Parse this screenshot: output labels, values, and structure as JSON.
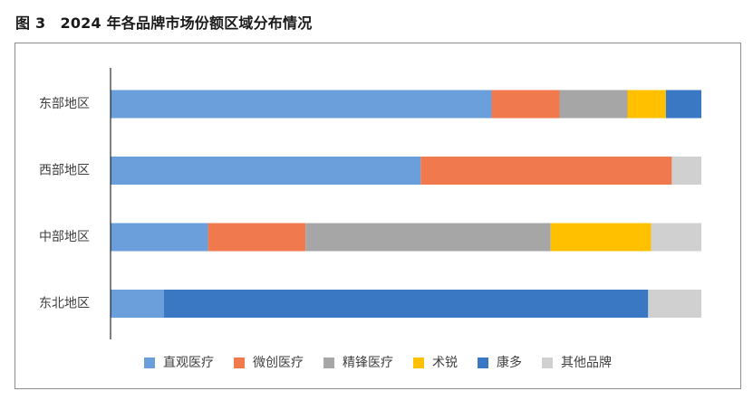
{
  "figure": {
    "title": "图 3　2024 年各品牌市场份额区域分布情况"
  },
  "chart_data": {
    "type": "bar",
    "orientation": "horizontal",
    "stacked": "percent",
    "title": "",
    "xlabel": "",
    "ylabel": "",
    "xlim": [
      0,
      100
    ],
    "grid": false,
    "legend_position": "bottom",
    "categories": [
      "东部地区",
      "西部地区",
      "中部地区",
      "东北地区"
    ],
    "series": [
      {
        "name": "直观医疗",
        "color": "#6A9FDB",
        "values": [
          64.5,
          52.5,
          16.5,
          9.0
        ]
      },
      {
        "name": "微创医疗",
        "color": "#F07A4E",
        "values": [
          11.5,
          42.5,
          16.5,
          0.0
        ]
      },
      {
        "name": "精锋医疗",
        "color": "#A6A6A6",
        "values": [
          11.5,
          0.0,
          41.5,
          0.0
        ]
      },
      {
        "name": "术锐",
        "color": "#FFC000",
        "values": [
          6.5,
          0.0,
          17.0,
          0.0
        ]
      },
      {
        "name": "康多",
        "color": "#3A78C3",
        "values": [
          6.0,
          0.0,
          0.0,
          82.0
        ]
      },
      {
        "name": "其他品牌",
        "color": "#D0D0D0",
        "values": [
          0.0,
          5.0,
          8.5,
          9.0
        ]
      }
    ]
  }
}
